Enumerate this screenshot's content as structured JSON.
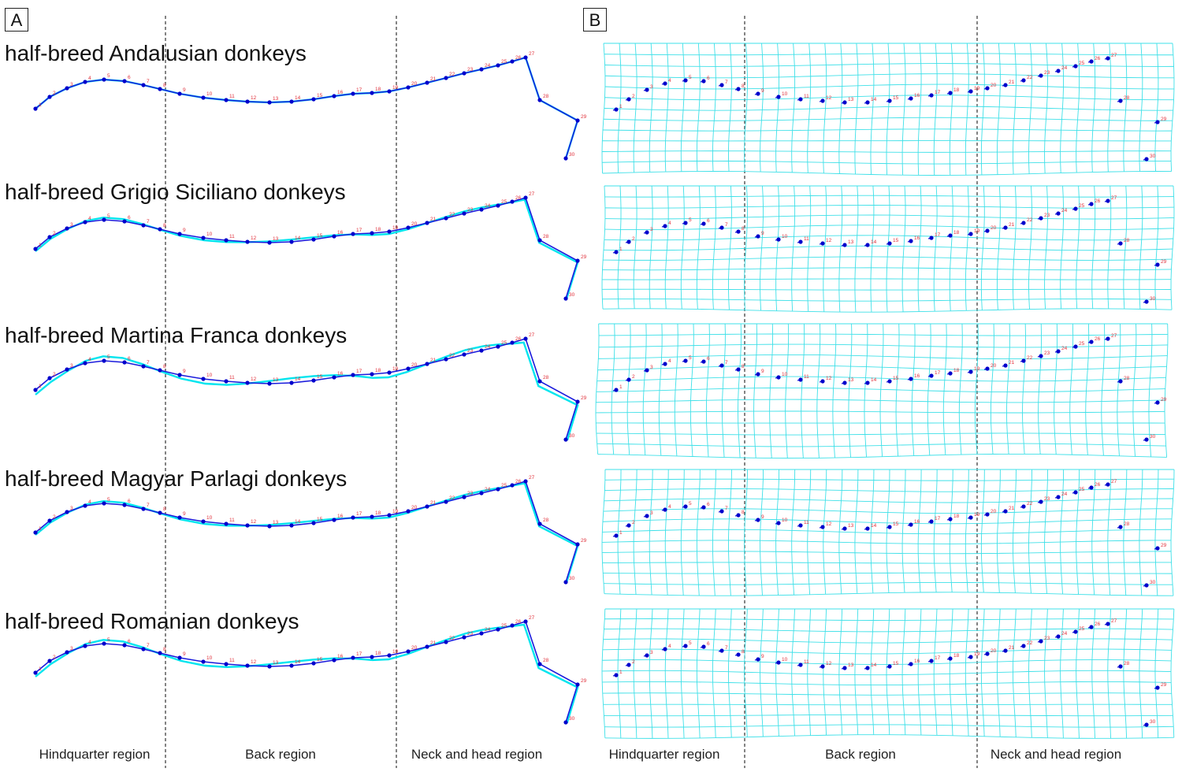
{
  "panels": {
    "left_label": "A",
    "right_label": "B"
  },
  "breeds": [
    "half-breed Andalusian donkeys",
    "half-breed Grigio Siciliano donkeys",
    "half-breed Martina Franca donkeys",
    "half-breed Magyar Parlagi donkeys",
    "half-breed Romanian donkeys"
  ],
  "regions": {
    "hindquarter": "Hindquarter region",
    "back": "Back region",
    "neck_head": "Neck and head region"
  },
  "landmark_numbers": [
    "1",
    "2",
    "3",
    "4",
    "5",
    "6",
    "7",
    "8",
    "9",
    "10",
    "11",
    "12",
    "13",
    "14",
    "15",
    "16",
    "17",
    "18",
    "19",
    "20",
    "21",
    "22",
    "23",
    "24",
    "25",
    "26",
    "27",
    "28",
    "29",
    "30"
  ],
  "colors": {
    "consensus_line": "#00e5ee",
    "breed_line": "#1a1adc",
    "landmark_dot": "#0000cc",
    "landmark_label": "#e0303a",
    "grid": "#3ee0e8",
    "divider": "#333333"
  }
}
